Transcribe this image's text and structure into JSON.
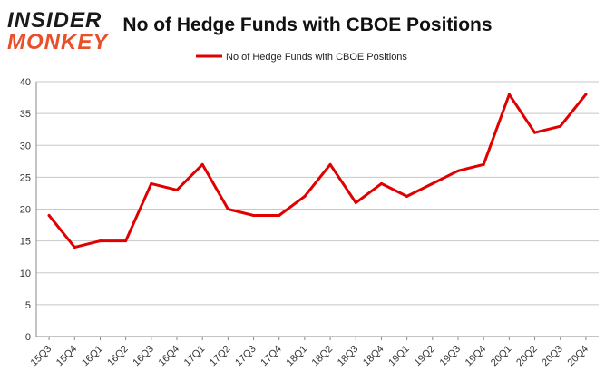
{
  "logo": {
    "line1": "INSIDER",
    "line2": "MONKEY"
  },
  "chart_data": {
    "type": "line",
    "title": "No of Hedge Funds with CBOE Positions",
    "xlabel": "",
    "ylabel": "",
    "legend_position": "top-center",
    "grid": true,
    "ylim": [
      0,
      40
    ],
    "yticks": [
      0,
      5,
      10,
      15,
      20,
      25,
      30,
      35,
      40
    ],
    "categories": [
      "15Q3",
      "15Q4",
      "16Q1",
      "16Q2",
      "16Q3",
      "16Q4",
      "17Q1",
      "17Q2",
      "17Q3",
      "17Q4",
      "18Q1",
      "18Q2",
      "18Q3",
      "18Q4",
      "19Q1",
      "19Q2",
      "19Q3",
      "19Q4",
      "20Q1",
      "20Q2",
      "20Q3",
      "20Q4"
    ],
    "series": [
      {
        "name": "No of Hedge Funds with CBOE Positions",
        "color": "#e00000",
        "values": [
          19,
          14,
          15,
          15,
          24,
          23,
          27,
          20,
          19,
          19,
          22,
          27,
          21,
          24,
          22,
          24,
          26,
          27,
          38,
          32,
          33,
          38
        ]
      }
    ]
  },
  "colors": {
    "logo_dark": "#1a1a1a",
    "logo_accent": "#e8502a",
    "grid": "#c8c8c8",
    "axis": "#888888"
  }
}
